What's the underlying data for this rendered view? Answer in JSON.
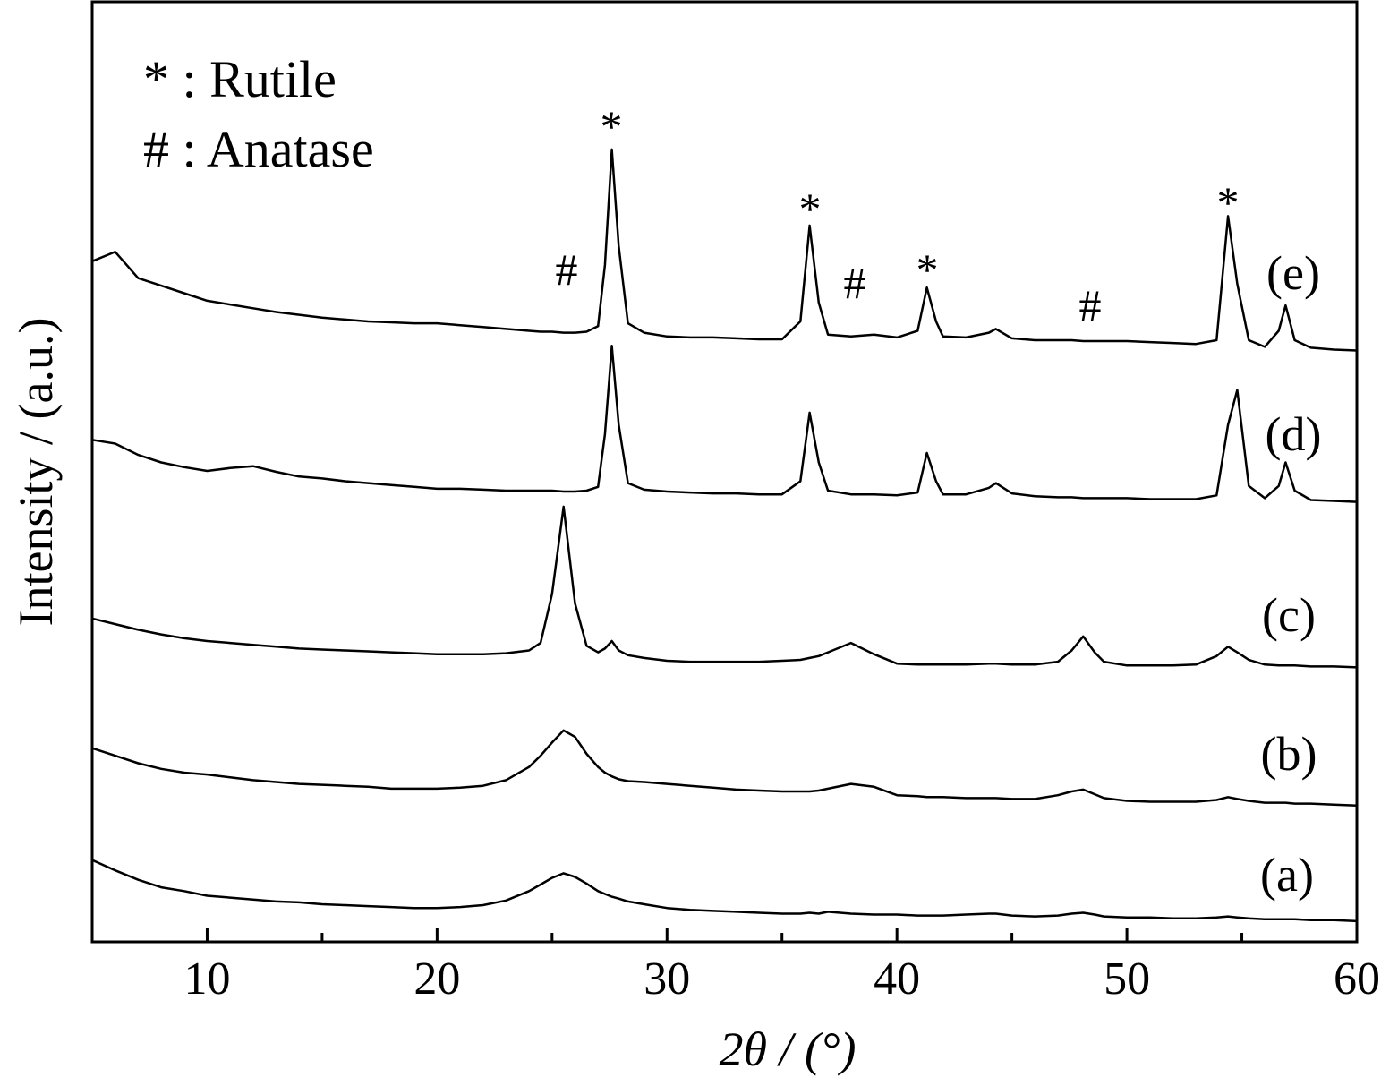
{
  "chart_data": {
    "type": "line",
    "x_label": "2θ / (°)",
    "y_label": "Intensity / (a.u.)",
    "xlim": [
      5,
      60
    ],
    "ylim": [
      0,
      100
    ],
    "xticks": [
      10,
      20,
      30,
      40,
      50,
      60
    ],
    "minor_xticks": [
      15,
      25,
      35,
      45,
      55
    ],
    "x": [
      5,
      6,
      7,
      8,
      9,
      10,
      11,
      12,
      13,
      14,
      15,
      16,
      17,
      18,
      19,
      20,
      21,
      22,
      23,
      24,
      24.5,
      25,
      25.5,
      26,
      26.5,
      27,
      27.3,
      27.6,
      27.9,
      28.3,
      29,
      30,
      31,
      32,
      33,
      34,
      35,
      35.8,
      36.2,
      36.6,
      37,
      38,
      39,
      40,
      40.9,
      41.3,
      41.7,
      42,
      43,
      44,
      44.3,
      45,
      46,
      47,
      47.6,
      48.1,
      48.6,
      49,
      50,
      51,
      52,
      53,
      53.9,
      54.4,
      54.8,
      55.3,
      56,
      56.6,
      56.9,
      57.3,
      58,
      59,
      60
    ],
    "series": [
      {
        "name": "(a)",
        "color": "#000000",
        "values": [
          8.7,
          7.6,
          6.6,
          5.8,
          5.4,
          4.9,
          4.7,
          4.5,
          4.3,
          4.2,
          4.0,
          3.9,
          3.8,
          3.7,
          3.6,
          3.6,
          3.7,
          3.9,
          4.4,
          5.4,
          6.1,
          6.8,
          7.3,
          6.9,
          6.2,
          5.4,
          5.1,
          4.8,
          4.6,
          4.3,
          4.0,
          3.6,
          3.4,
          3.3,
          3.2,
          3.1,
          3.0,
          3.0,
          3.1,
          3.0,
          3.2,
          3.0,
          2.9,
          2.9,
          2.8,
          2.8,
          2.8,
          2.8,
          2.9,
          3.0,
          3.0,
          2.8,
          2.7,
          2.8,
          3.0,
          3.1,
          2.9,
          2.7,
          2.6,
          2.6,
          2.5,
          2.5,
          2.6,
          2.7,
          2.6,
          2.5,
          2.4,
          2.4,
          2.4,
          2.4,
          2.3,
          2.3,
          2.2
        ]
      },
      {
        "name": "(b)",
        "color": "#000000",
        "values": [
          20.6,
          19.8,
          19.0,
          18.4,
          18.0,
          17.8,
          17.5,
          17.2,
          17.0,
          16.8,
          16.7,
          16.6,
          16.5,
          16.3,
          16.3,
          16.3,
          16.4,
          16.6,
          17.2,
          18.6,
          19.8,
          21.2,
          22.5,
          21.8,
          20.0,
          18.6,
          18.0,
          17.6,
          17.3,
          17.1,
          17.0,
          16.8,
          16.6,
          16.4,
          16.2,
          16.1,
          16.0,
          16.0,
          16.0,
          16.1,
          16.3,
          16.8,
          16.5,
          15.6,
          15.5,
          15.4,
          15.4,
          15.4,
          15.3,
          15.3,
          15.3,
          15.2,
          15.2,
          15.6,
          16.0,
          16.2,
          15.7,
          15.3,
          15.0,
          14.9,
          14.9,
          14.9,
          15.1,
          15.4,
          15.2,
          15.0,
          14.8,
          14.8,
          14.8,
          14.7,
          14.7,
          14.6,
          14.5
        ]
      },
      {
        "name": "(c)",
        "color": "#000000",
        "values": [
          34.4,
          33.8,
          33.2,
          32.7,
          32.3,
          32.0,
          31.8,
          31.6,
          31.4,
          31.2,
          31.1,
          31.0,
          30.9,
          30.8,
          30.7,
          30.6,
          30.6,
          30.6,
          30.7,
          31.0,
          31.8,
          37.0,
          46.3,
          36.0,
          31.5,
          30.8,
          31.2,
          32.0,
          31.0,
          30.5,
          30.2,
          29.9,
          29.8,
          29.8,
          29.8,
          29.8,
          29.9,
          30.0,
          30.2,
          30.4,
          30.8,
          31.8,
          30.6,
          29.6,
          29.5,
          29.5,
          29.5,
          29.5,
          29.5,
          29.6,
          29.6,
          29.5,
          29.5,
          29.8,
          31.0,
          32.5,
          30.8,
          29.8,
          29.4,
          29.4,
          29.4,
          29.5,
          30.4,
          31.4,
          30.8,
          30.0,
          29.5,
          29.4,
          29.4,
          29.4,
          29.3,
          29.3,
          29.2
        ]
      },
      {
        "name": "(d)",
        "color": "#000000",
        "values": [
          53.4,
          53.0,
          51.8,
          51.0,
          50.5,
          50.1,
          50.4,
          50.6,
          50.0,
          49.5,
          49.3,
          49.0,
          48.8,
          48.6,
          48.4,
          48.2,
          48.2,
          48.1,
          48.0,
          48.0,
          48.0,
          48.0,
          47.9,
          47.9,
          48.0,
          48.4,
          54.0,
          63.4,
          55.0,
          48.8,
          48.1,
          47.9,
          47.8,
          47.7,
          47.7,
          47.6,
          47.6,
          49.0,
          56.3,
          51.0,
          48.0,
          47.6,
          47.6,
          47.5,
          47.8,
          52.0,
          49.0,
          47.6,
          47.6,
          48.3,
          48.8,
          47.7,
          47.4,
          47.3,
          47.3,
          47.2,
          47.2,
          47.2,
          47.2,
          47.1,
          47.1,
          47.1,
          47.5,
          55.0,
          58.7,
          48.5,
          47.2,
          48.5,
          51.0,
          48.0,
          47.0,
          46.9,
          46.8
        ]
      },
      {
        "name": "(e)",
        "color": "#000000",
        "values": [
          72.4,
          73.4,
          70.6,
          69.8,
          69.0,
          68.2,
          67.8,
          67.4,
          67.0,
          66.7,
          66.4,
          66.2,
          66.0,
          65.9,
          65.8,
          65.8,
          65.6,
          65.4,
          65.2,
          65.0,
          64.9,
          64.9,
          64.8,
          64.8,
          64.9,
          65.5,
          72.0,
          84.3,
          74.0,
          65.8,
          64.8,
          64.4,
          64.3,
          64.3,
          64.2,
          64.1,
          64.1,
          66.0,
          76.2,
          68.0,
          64.6,
          64.4,
          64.6,
          64.3,
          65.0,
          69.6,
          66.0,
          64.4,
          64.3,
          64.8,
          65.2,
          64.2,
          64.0,
          64.0,
          64.0,
          63.9,
          63.9,
          63.9,
          63.9,
          63.8,
          63.7,
          63.6,
          64.0,
          77.2,
          70.0,
          64.0,
          63.3,
          65.0,
          67.7,
          64.0,
          63.2,
          63.0,
          62.9
        ]
      }
    ],
    "legend_notes": [
      "* : Rutile",
      "# : Anatase"
    ],
    "annotations": [
      "*",
      "#",
      "*",
      "#",
      "*",
      "#",
      "*"
    ]
  }
}
